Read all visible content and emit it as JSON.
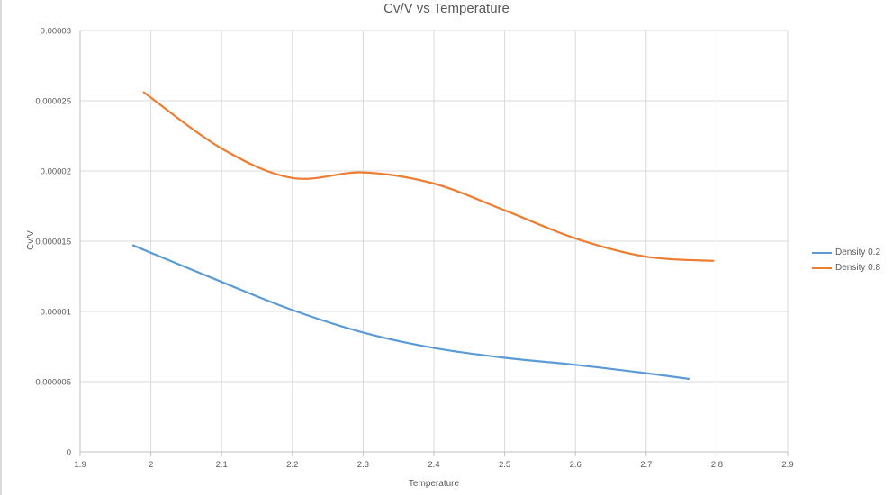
{
  "chart_data": {
    "type": "line",
    "title": "Cv/V vs Temperature",
    "xlabel": "Temperature",
    "ylabel": "Cv/V",
    "xlim": [
      1.9,
      2.9
    ],
    "ylim": [
      0,
      3e-05
    ],
    "x_ticks": [
      1.9,
      2,
      2.1,
      2.2,
      2.3,
      2.4,
      2.5,
      2.6,
      2.7,
      2.8,
      2.9
    ],
    "x_tick_labels": [
      "1.9",
      "2",
      "2.1",
      "2.2",
      "2.3",
      "2.4",
      "2.5",
      "2.6",
      "2.7",
      "2.8",
      "2.9"
    ],
    "y_ticks": [
      0,
      5e-06,
      1e-05,
      1.5e-05,
      2e-05,
      2.5e-05,
      3e-05
    ],
    "y_tick_labels": [
      "0",
      "0.000005",
      "0.00001",
      "0.000015",
      "0.00002",
      "0.000025",
      "0.00003"
    ],
    "grid": true,
    "legend_position": "right",
    "series": [
      {
        "name": "Density 0.2",
        "color": "#5b9bd5",
        "x": [
          1.975,
          2.1,
          2.2,
          2.3,
          2.4,
          2.5,
          2.6,
          2.7,
          2.76
        ],
        "y": [
          1.47e-05,
          1.21e-05,
          1.01e-05,
          8.5e-06,
          7.4e-06,
          6.7e-06,
          6.2e-06,
          5.6e-06,
          5.2e-06
        ]
      },
      {
        "name": "Density 0.8",
        "color": "#ed7d31",
        "x": [
          1.99,
          2.1,
          2.2,
          2.3,
          2.4,
          2.5,
          2.6,
          2.7,
          2.795
        ],
        "y": [
          2.56e-05,
          2.16e-05,
          1.95e-05,
          1.99e-05,
          1.91e-05,
          1.72e-05,
          1.52e-05,
          1.39e-05,
          1.36e-05
        ]
      }
    ]
  }
}
